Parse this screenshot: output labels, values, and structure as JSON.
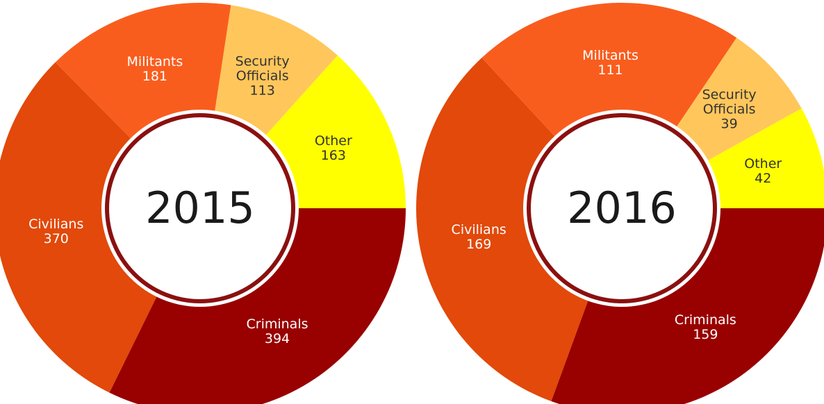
{
  "chart_data": [
    {
      "type": "donut",
      "title": "2015",
      "categories": [
        "Criminals",
        "Civilians",
        "Militants",
        "Security Officials",
        "Other"
      ],
      "values": [
        394,
        370,
        181,
        113,
        163
      ],
      "colors": [
        "#990000",
        "#e2490a",
        "#f95d1e",
        "#ffc65c",
        "#ffff00"
      ]
    },
    {
      "type": "donut",
      "title": "2016",
      "categories": [
        "Criminals",
        "Civilians",
        "Militants",
        "Security Officials",
        "Other"
      ],
      "values": [
        159,
        169,
        111,
        39,
        42
      ],
      "colors": [
        "#990000",
        "#e2490a",
        "#f95d1e",
        "#ffc65c",
        "#ffff00"
      ]
    }
  ]
}
